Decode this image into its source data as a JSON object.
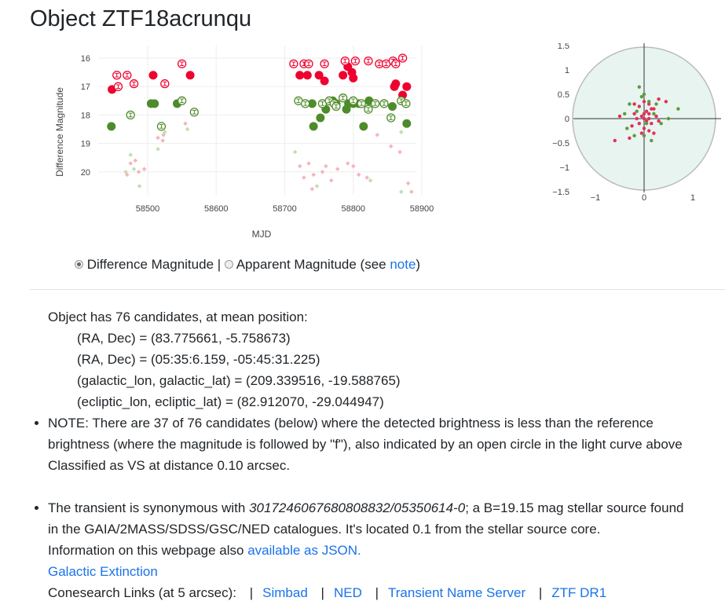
{
  "page": {
    "title": "Object ZTF18acrunqu"
  },
  "lightcurve": {
    "ylabel": "Difference Magnitude",
    "xlabel": "MJD",
    "xticks": [
      "58500",
      "58600",
      "58700",
      "58800",
      "58900"
    ],
    "yticks": [
      "16",
      "17",
      "18",
      "19",
      "20"
    ],
    "colors": {
      "r_solid": "#f0002f",
      "g_solid": "#4e8b2a",
      "r_faint": "#f5b5bf",
      "g_faint": "#bfe0b0"
    }
  },
  "positions": {
    "xticks": [
      "−1",
      "0",
      "1"
    ],
    "yticks": [
      "1.5",
      "1",
      "0.5",
      "0",
      "−0.5",
      "−1",
      "−1.5"
    ],
    "colors": {
      "circle_fill": "#e8f4f0",
      "r": "#e0305a",
      "g": "#5a9a3c"
    }
  },
  "toggle": {
    "option1": "Difference Magnitude",
    "divider": " | ",
    "option2": "Apparent Magnitude (see ",
    "note_link": "note",
    "close": ")"
  },
  "info": {
    "candidates": "Object has 76 candidates, at mean position:",
    "radec_deg": "(RA, Dec) = (83.775661, -5.758673)",
    "radec_sex": "(RA, Dec) = (05:35:6.159, -05:45:31.225)",
    "galactic": "(galactic_lon, galactic_lat) = (209.339516, -19.588765)",
    "ecliptic": "(ecliptic_lon, ecliptic_lat) = (82.912070, -29.044947)",
    "note_line1": "NOTE: There are 37 of 76 candidates (below) where the detected brightness is less than the reference",
    "note_line2": "brightness (where the magnitude is followed by \"f\"), also indicated by an open circle in the light curve above",
    "classified": "Classified as VS at distance 0.10 arcsec.",
    "synonym_prefix": "The transient is synonymous with ",
    "synonym_id": "3017246067680808832/05350614-0",
    "synonym_suffix": "; a B=19.15 mag stellar source found",
    "synonym_line2": "in the GAIA/2MASS/SDSS/GSC/NED catalogues. It's located 0.1 from the stellar source core.",
    "json_prefix": "Information on this webpage also ",
    "json_link": "available as JSON.",
    "extinction_link": "Galactic Extinction",
    "conesearch_label": "Conesearch Links (at 5 arcsec):",
    "links": [
      "Simbad",
      "NED",
      "Transient Name Server",
      "ZTF DR1"
    ]
  }
}
